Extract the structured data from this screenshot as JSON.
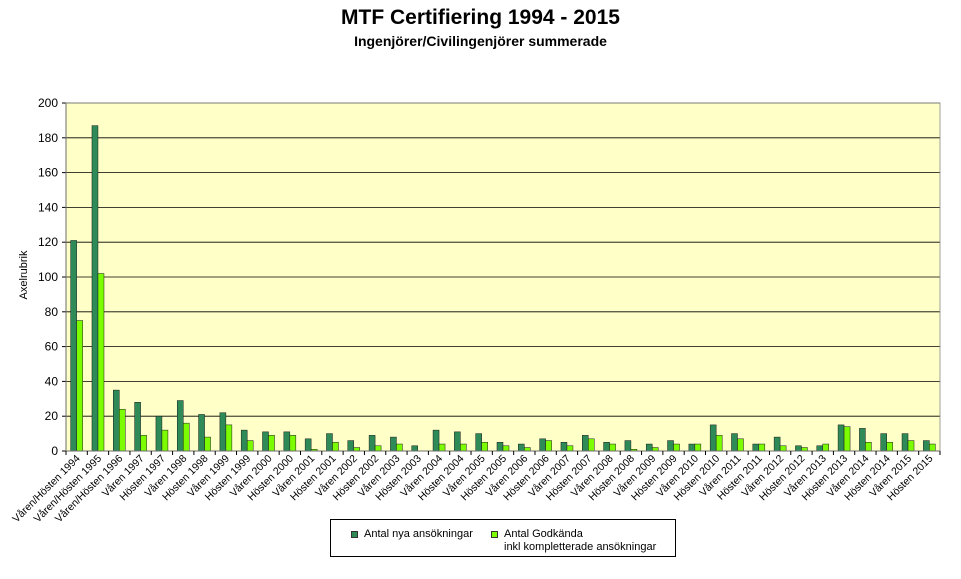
{
  "chart_data": {
    "type": "bar",
    "title": "MTF Certifiering 1994 - 2015",
    "subtitle": "Ingenjörer/Civilingenjörer summerade",
    "ylabel": "Axelrubrik",
    "xlabel": "",
    "ylim": [
      0,
      200
    ],
    "yticks": [
      0,
      20,
      40,
      60,
      80,
      100,
      120,
      140,
      160,
      180,
      200
    ],
    "grid": true,
    "legend_position": "bottom",
    "plot_background": "#ffffc8",
    "categories": [
      "Våren/Hösten 1994",
      "Våren/Hösten 1995",
      "Våren/Hösten 1996",
      "Våren 1997",
      "Hösten 1997",
      "Våren 1998",
      "Hösten 1998",
      "Våren 1999",
      "Hösten 1999",
      "Våren 2000",
      "Hösten 2000",
      "Våren 2001",
      "Hösten 2001",
      "Våren 2002",
      "Hösten 2002",
      "Våren 2003",
      "Hösten 2003",
      "Våren 2004",
      "Hösten 2004",
      "Våren 2005",
      "Hösten 2005",
      "Våren 2006",
      "Hösten 2006",
      "Våren 2007",
      "Hösten 2007",
      "Våren 2008",
      "Hösten 2008",
      "Våren 2009",
      "Hösten 2009",
      "Våren 2010",
      "Hösten 2010",
      "Våren 2011",
      "Hösten 2011",
      "Våren 2012",
      "Hösten 2012",
      "Våren 2013",
      "Hösten 2013",
      "Våren 2014",
      "Hösten 2014",
      "Våren 2015",
      "Hösten 2015"
    ],
    "series": [
      {
        "name": "Antal nya ansökningar",
        "color": "#2e8b57",
        "values": [
          121,
          187,
          35,
          28,
          20,
          29,
          21,
          22,
          12,
          11,
          11,
          7,
          10,
          6,
          9,
          8,
          3,
          12,
          11,
          10,
          5,
          4,
          7,
          5,
          9,
          5,
          6,
          4,
          6,
          4,
          15,
          10,
          4,
          8,
          3,
          3,
          15,
          13,
          10,
          10,
          6
        ]
      },
      {
        "name": "Antal Godkända\ninkl kompletterade ansökningar",
        "color": "#7cfc00",
        "values": [
          75,
          102,
          24,
          9,
          12,
          16,
          8,
          15,
          6,
          9,
          9,
          1,
          5,
          2,
          3,
          4,
          0,
          4,
          4,
          5,
          3,
          2,
          6,
          3,
          7,
          4,
          1,
          2,
          4,
          4,
          9,
          7,
          4,
          3,
          2,
          4,
          14,
          5,
          5,
          6,
          4
        ]
      }
    ]
  }
}
